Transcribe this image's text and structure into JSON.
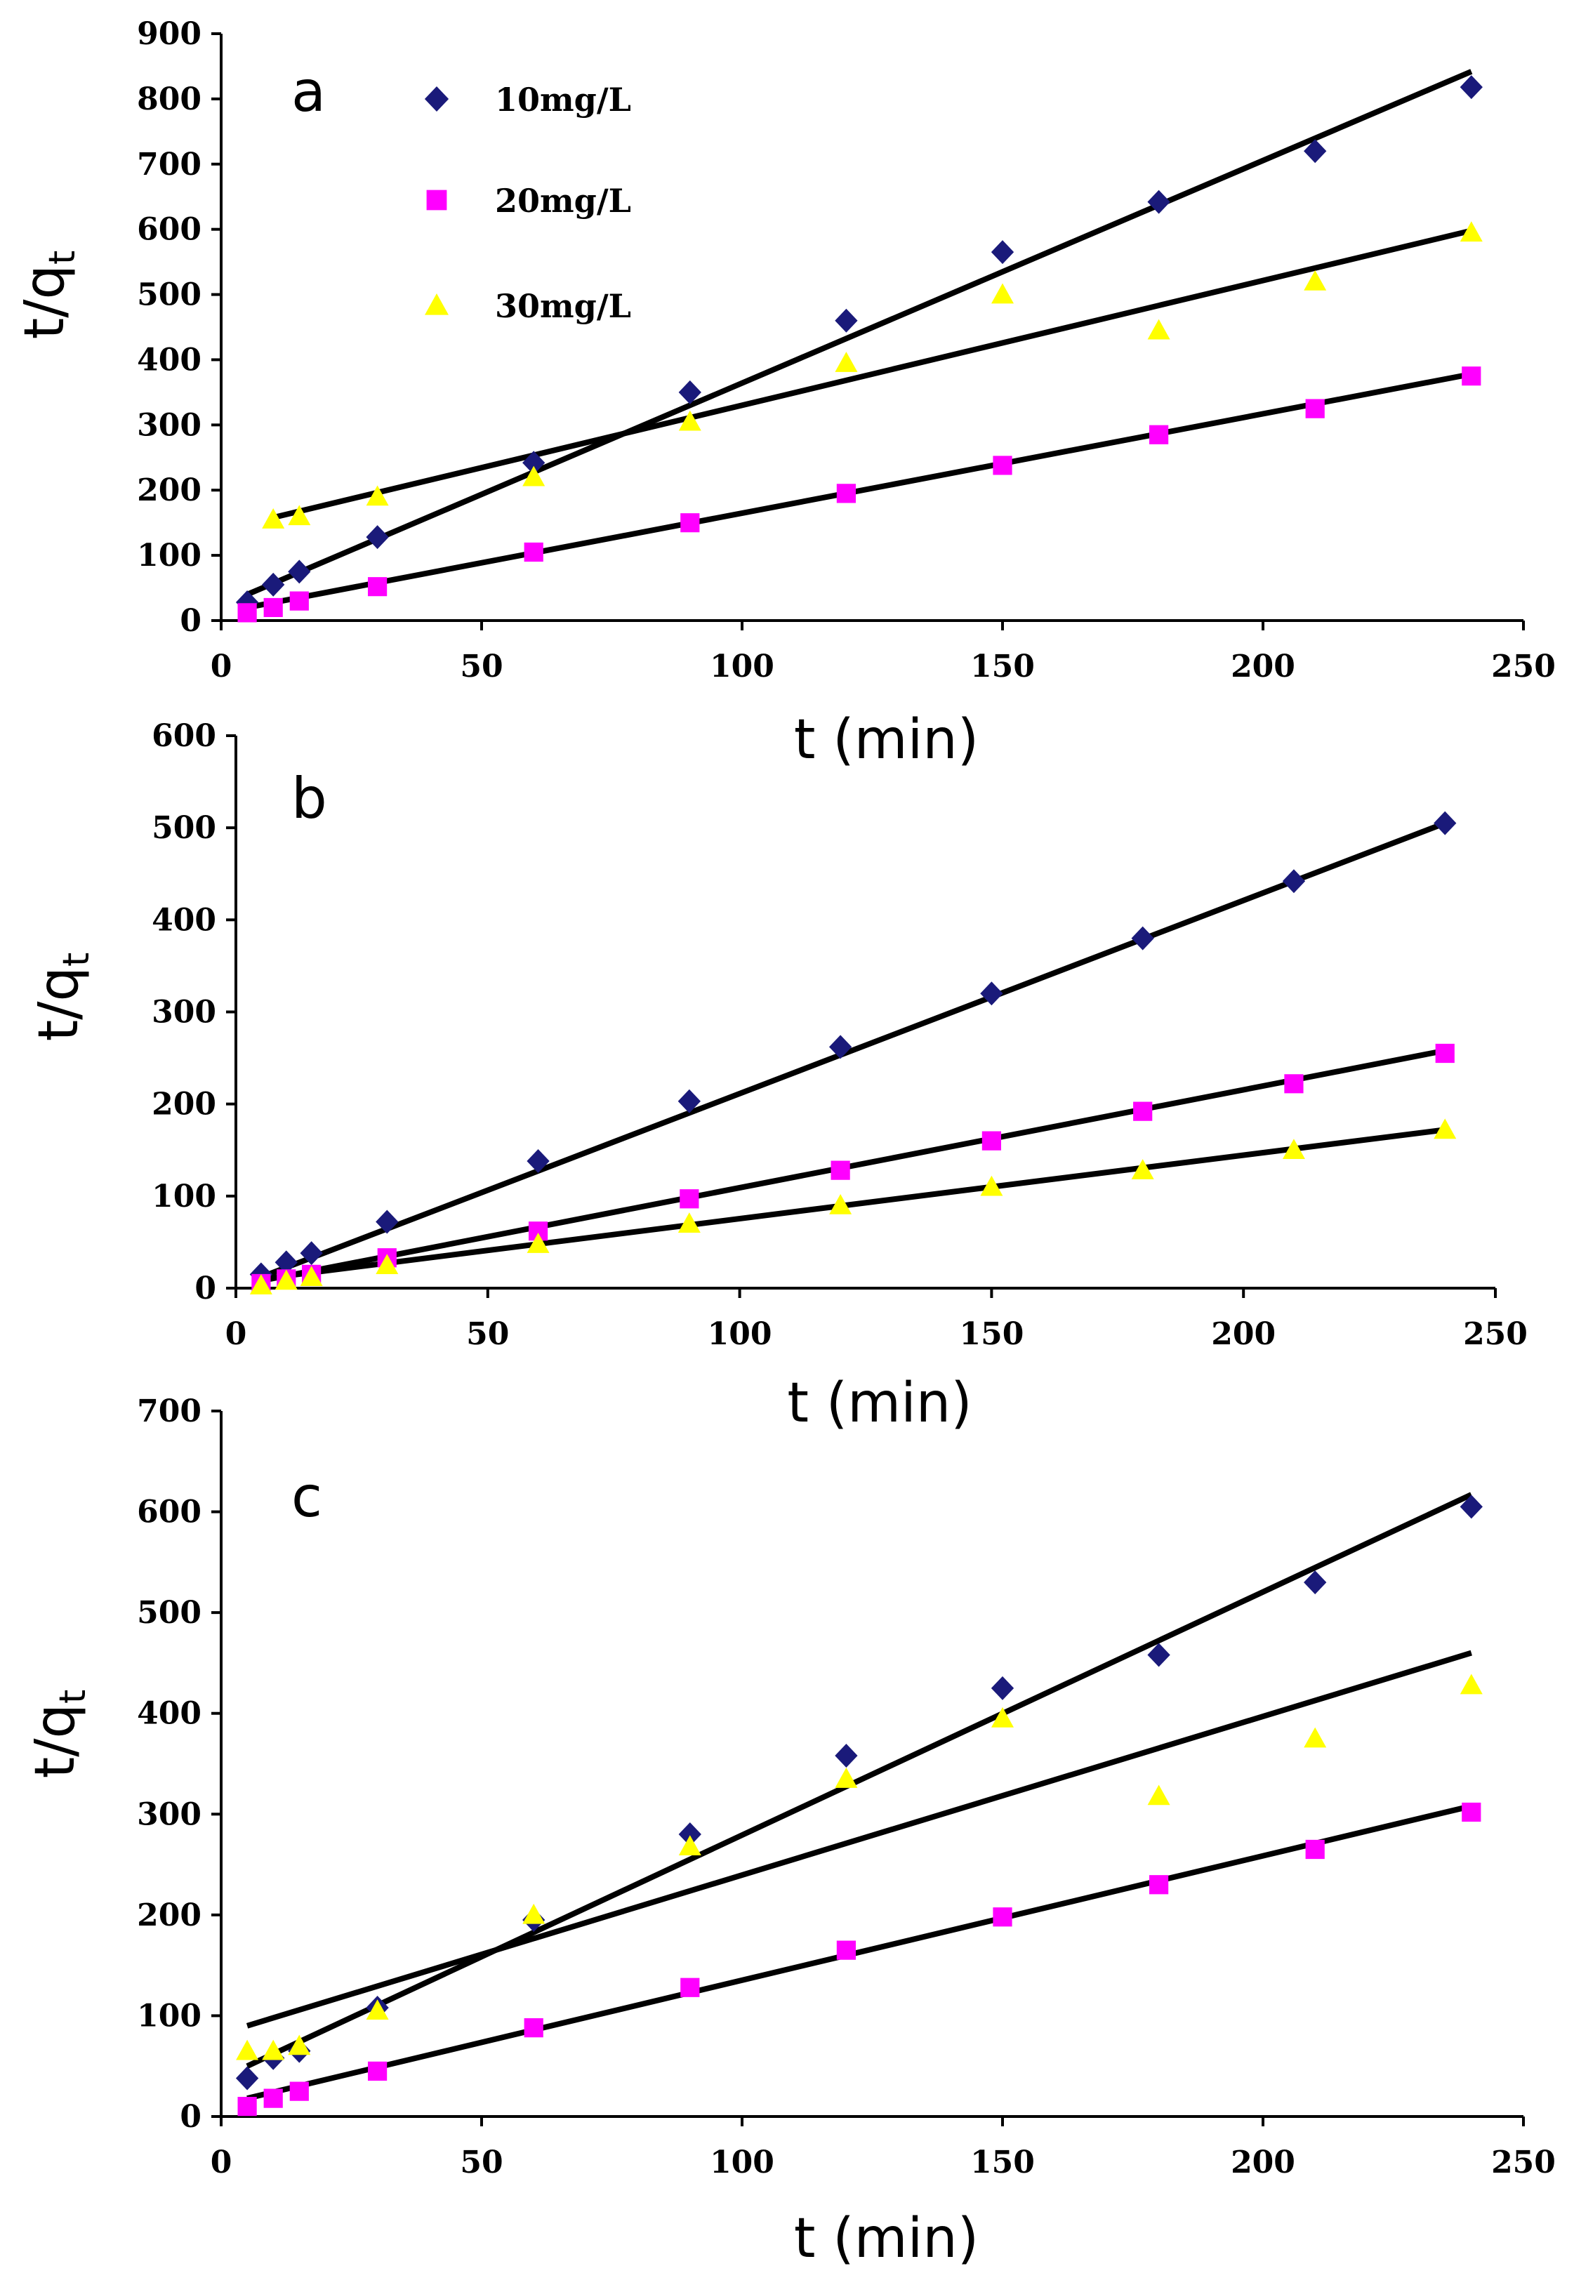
{
  "legend": [
    {
      "label": "10mg/L",
      "marker": "diamond",
      "color": "#1a1a7a"
    },
    {
      "label": "20mg/L",
      "marker": "square",
      "color": "#ff00ff"
    },
    {
      "label": "30mg/L",
      "marker": "triangle",
      "color": "#ffff00"
    }
  ],
  "chart_data": [
    {
      "type": "scatter",
      "panel": "a",
      "xlabel": "t (min)",
      "ylabel_main": "t/q",
      "ylabel_sub": "t",
      "xlim": [
        0,
        250
      ],
      "ylim": [
        0,
        900
      ],
      "xticks": [
        "0",
        "50",
        "100",
        "150",
        "200",
        "250"
      ],
      "yticks": [
        "0",
        "100",
        "200",
        "300",
        "400",
        "500",
        "600",
        "700",
        "800",
        "900"
      ],
      "series": [
        {
          "name": "10mg/L",
          "marker": "diamond",
          "color": "#1a1a7a",
          "x": [
            5,
            10,
            15,
            30,
            60,
            90,
            120,
            150,
            180,
            210,
            240
          ],
          "y": [
            28,
            55,
            75,
            128,
            242,
            350,
            460,
            565,
            642,
            720,
            818
          ],
          "fit": [
            [
              5,
              40
            ],
            [
              240,
              842
            ]
          ]
        },
        {
          "name": "20mg/L",
          "marker": "square",
          "color": "#ff00ff",
          "x": [
            5,
            10,
            15,
            30,
            60,
            90,
            120,
            150,
            180,
            210,
            240
          ],
          "y": [
            12,
            20,
            30,
            52,
            105,
            150,
            195,
            238,
            285,
            325,
            375
          ],
          "fit": [
            [
              5,
              20
            ],
            [
              240,
              378
            ]
          ]
        },
        {
          "name": "30mg/L",
          "marker": "triangle",
          "color": "#ffff00",
          "x": [
            10,
            15,
            30,
            60,
            90,
            120,
            150,
            180,
            210,
            240
          ],
          "y": [
            155,
            160,
            190,
            220,
            305,
            395,
            500,
            445,
            520,
            595
          ],
          "fit": [
            [
              10,
              158
            ],
            [
              240,
              598
            ]
          ]
        }
      ]
    },
    {
      "type": "scatter",
      "panel": "b",
      "xlabel": "t (min)",
      "ylabel_main": "t/q",
      "ylabel_sub": "t",
      "xlim": [
        0,
        250
      ],
      "ylim": [
        0,
        600
      ],
      "xticks": [
        "0",
        "50",
        "100",
        "150",
        "200",
        "250"
      ],
      "yticks": [
        "0",
        "100",
        "200",
        "300",
        "400",
        "500",
        "600"
      ],
      "series": [
        {
          "name": "10mg/L",
          "marker": "diamond",
          "color": "#1a1a7a",
          "x": [
            5,
            10,
            15,
            30,
            60,
            90,
            120,
            150,
            180,
            210,
            240
          ],
          "y": [
            15,
            28,
            38,
            72,
            138,
            203,
            262,
            320,
            380,
            442,
            505
          ],
          "fit": [
            [
              5,
              12
            ],
            [
              240,
              505
            ]
          ]
        },
        {
          "name": "20mg/L",
          "marker": "square",
          "color": "#ff00ff",
          "x": [
            5,
            10,
            15,
            30,
            60,
            90,
            120,
            150,
            180,
            210,
            240
          ],
          "y": [
            5,
            10,
            15,
            33,
            62,
            97,
            128,
            160,
            192,
            222,
            255
          ],
          "fit": [
            [
              5,
              8
            ],
            [
              240,
              258
            ]
          ]
        },
        {
          "name": "30mg/L",
          "marker": "triangle",
          "color": "#ffff00",
          "x": [
            5,
            10,
            15,
            30,
            60,
            90,
            120,
            150,
            180,
            210,
            240
          ],
          "y": [
            3,
            8,
            12,
            25,
            48,
            70,
            90,
            110,
            128,
            150,
            172
          ],
          "fit": [
            [
              5,
              10
            ],
            [
              240,
              172
            ]
          ]
        }
      ]
    },
    {
      "type": "scatter",
      "panel": "c",
      "xlabel": "t (min)",
      "ylabel_main": "t/q",
      "ylabel_sub": "t",
      "xlim": [
        0,
        250
      ],
      "ylim": [
        0,
        700
      ],
      "xticks": [
        "0",
        "50",
        "100",
        "150",
        "200",
        "250"
      ],
      "yticks": [
        "0",
        "100",
        "200",
        "300",
        "400",
        "500",
        "600",
        "700"
      ],
      "series": [
        {
          "name": "10mg/L",
          "marker": "diamond",
          "color": "#1a1a7a",
          "x": [
            5,
            10,
            15,
            30,
            60,
            90,
            120,
            150,
            180,
            210,
            240
          ],
          "y": [
            38,
            58,
            65,
            108,
            195,
            280,
            358,
            425,
            458,
            530,
            605
          ],
          "fit": [
            [
              5,
              50
            ],
            [
              240,
              617
            ]
          ]
        },
        {
          "name": "20mg/L",
          "marker": "square",
          "color": "#ff00ff",
          "x": [
            5,
            10,
            15,
            30,
            60,
            90,
            120,
            150,
            180,
            210,
            240
          ],
          "y": [
            10,
            18,
            25,
            45,
            88,
            128,
            165,
            198,
            230,
            265,
            302
          ],
          "fit": [
            [
              5,
              18
            ],
            [
              240,
              308
            ]
          ]
        },
        {
          "name": "30mg/L",
          "marker": "triangle",
          "color": "#ffff00",
          "x": [
            5,
            10,
            15,
            30,
            60,
            90,
            120,
            150,
            180,
            210,
            240
          ],
          "y": [
            65,
            65,
            70,
            105,
            200,
            268,
            335,
            395,
            318,
            375,
            428
          ],
          "fit": [
            [
              5,
              90
            ],
            [
              240,
              460
            ]
          ]
        }
      ]
    }
  ]
}
